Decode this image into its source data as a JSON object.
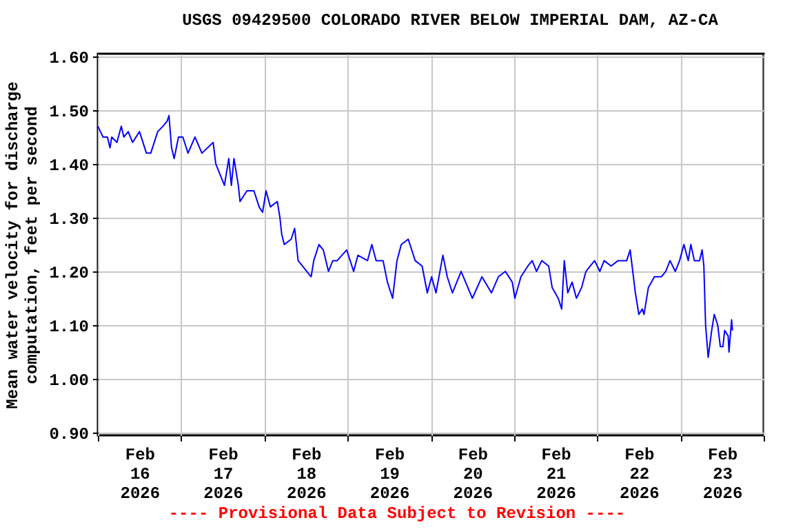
{
  "chart_data": {
    "type": "line",
    "title": "USGS 09429500 COLORADO RIVER BELOW IMPERIAL DAM, AZ-CA",
    "ylabel": "Mean water velocity for discharge computation, feet per second",
    "annotations": [
      "---- Provisional Data Subject to Revision ----"
    ],
    "xlim": [
      "2026-02-16T00:00",
      "2026-02-24T00:00"
    ],
    "xticks": [
      {
        "value": "2026-02-16T00:00",
        "label": null
      },
      {
        "value": "2026-02-16T12:00",
        "label": "Feb 16 2026"
      },
      {
        "value": "2026-02-17T00:00",
        "label": null
      },
      {
        "value": "2026-02-17T12:00",
        "label": "Feb 17 2026"
      },
      {
        "value": "2026-02-18T00:00",
        "label": null
      },
      {
        "value": "2026-02-18T12:00",
        "label": "Feb 18 2026"
      },
      {
        "value": "2026-02-19T00:00",
        "label": null
      },
      {
        "value": "2026-02-19T12:00",
        "label": "Feb 19 2026"
      },
      {
        "value": "2026-02-20T00:00",
        "label": null
      },
      {
        "value": "2026-02-20T12:00",
        "label": "Feb 20 2026"
      },
      {
        "value": "2026-02-21T00:00",
        "label": null
      },
      {
        "value": "2026-02-21T12:00",
        "label": "Feb 21 2026"
      },
      {
        "value": "2026-02-22T00:00",
        "label": null
      },
      {
        "value": "2026-02-22T12:00",
        "label": "Feb 22 2026"
      },
      {
        "value": "2026-02-23T00:00",
        "label": null
      },
      {
        "value": "2026-02-23T12:00",
        "label": "Feb 23 2026"
      },
      {
        "value": "2026-02-24T00:00",
        "label": null
      }
    ],
    "ylim": [
      0.895,
      1.605
    ],
    "yticks": [
      {
        "value": 0.9,
        "label": "0.90"
      },
      {
        "value": 1.0,
        "label": "1.00"
      },
      {
        "value": 1.1,
        "label": "1.10"
      },
      {
        "value": 1.2,
        "label": "1.20"
      },
      {
        "value": 1.3,
        "label": "1.30"
      },
      {
        "value": 1.4,
        "label": "1.40"
      },
      {
        "value": 1.5,
        "label": "1.50"
      },
      {
        "value": 1.6,
        "label": "1.60"
      }
    ],
    "grid": true,
    "marker": "none",
    "line_style": "solid",
    "x": [
      "2026-02-16T00:00",
      "2026-02-16T00:45",
      "2026-02-16T01:30",
      "2026-02-16T02:45",
      "2026-02-16T03:30",
      "2026-02-16T04:00",
      "2026-02-16T05:30",
      "2026-02-16T06:45",
      "2026-02-16T07:30",
      "2026-02-16T08:45",
      "2026-02-16T10:00",
      "2026-02-16T12:00",
      "2026-02-16T14:00",
      "2026-02-16T15:15",
      "2026-02-16T17:15",
      "2026-02-16T18:45",
      "2026-02-16T20:00",
      "2026-02-16T20:30",
      "2026-02-16T21:15",
      "2026-02-16T22:00",
      "2026-02-16T23:15",
      "2026-02-17T00:30",
      "2026-02-17T02:00",
      "2026-02-17T04:00",
      "2026-02-17T06:00",
      "2026-02-17T09:15",
      "2026-02-17T10:00",
      "2026-02-17T11:15",
      "2026-02-17T12:30",
      "2026-02-17T13:45",
      "2026-02-17T14:30",
      "2026-02-17T15:15",
      "2026-02-17T16:30",
      "2026-02-17T17:00",
      "2026-02-17T19:00",
      "2026-02-17T21:00",
      "2026-02-17T22:30",
      "2026-02-17T23:30",
      "2026-02-18T00:30",
      "2026-02-18T01:45",
      "2026-02-18T03:45",
      "2026-02-18T04:30",
      "2026-02-18T05:00",
      "2026-02-18T05:45",
      "2026-02-18T07:45",
      "2026-02-18T08:45",
      "2026-02-18T09:45",
      "2026-02-18T11:00",
      "2026-02-18T12:15",
      "2026-02-18T13:30",
      "2026-02-18T14:15",
      "2026-02-18T15:45",
      "2026-02-18T17:00",
      "2026-02-18T18:30",
      "2026-02-18T19:45",
      "2026-02-18T21:00",
      "2026-02-18T23:45",
      "2026-02-19T01:45",
      "2026-02-19T03:00",
      "2026-02-19T05:45",
      "2026-02-19T07:00",
      "2026-02-19T08:15",
      "2026-02-19T10:15",
      "2026-02-19T11:30",
      "2026-02-19T13:00",
      "2026-02-19T14:15",
      "2026-02-19T15:30",
      "2026-02-19T17:30",
      "2026-02-19T19:30",
      "2026-02-19T21:30",
      "2026-02-19T23:00",
      "2026-02-20T00:15",
      "2026-02-20T01:30",
      "2026-02-20T03:30",
      "2026-02-20T04:45",
      "2026-02-20T06:15",
      "2026-02-20T08:45",
      "2026-02-20T12:00",
      "2026-02-20T14:45",
      "2026-02-20T17:30",
      "2026-02-20T19:30",
      "2026-02-20T21:30",
      "2026-02-20T23:30",
      "2026-02-21T00:15",
      "2026-02-21T02:00",
      "2026-02-21T04:00",
      "2026-02-21T05:15",
      "2026-02-21T06:30",
      "2026-02-21T08:00",
      "2026-02-21T10:00",
      "2026-02-21T11:00",
      "2026-02-21T12:45",
      "2026-02-21T13:45",
      "2026-02-21T14:30",
      "2026-02-21T15:30",
      "2026-02-21T16:45",
      "2026-02-21T18:00",
      "2026-02-21T19:30",
      "2026-02-21T20:45",
      "2026-02-21T22:00",
      "2026-02-21T23:15",
      "2026-02-22T00:45",
      "2026-02-22T02:00",
      "2026-02-22T04:00",
      "2026-02-22T06:00",
      "2026-02-22T08:30",
      "2026-02-22T09:30",
      "2026-02-22T10:15",
      "2026-02-22T11:00",
      "2026-02-22T12:00",
      "2026-02-22T13:00",
      "2026-02-22T13:30",
      "2026-02-22T14:45",
      "2026-02-22T16:30",
      "2026-02-22T18:30",
      "2026-02-22T19:45",
      "2026-02-22T21:00",
      "2026-02-22T22:30",
      "2026-02-22T23:45",
      "2026-02-23T01:00",
      "2026-02-23T02:15",
      "2026-02-23T03:00",
      "2026-02-23T04:00",
      "2026-02-23T05:30",
      "2026-02-23T06:15",
      "2026-02-23T06:45",
      "2026-02-23T07:15",
      "2026-02-23T08:00",
      "2026-02-23T09:00",
      "2026-02-23T09:45",
      "2026-02-23T10:45",
      "2026-02-23T11:30",
      "2026-02-23T12:15",
      "2026-02-23T12:45",
      "2026-02-23T13:45",
      "2026-02-23T14:00",
      "2026-02-23T14:45",
      "2026-02-23T15:00"
    ],
    "series": [
      {
        "color": "#0000ff",
        "values": [
          1.47,
          1.46,
          1.45,
          1.45,
          1.43,
          1.45,
          1.44,
          1.47,
          1.45,
          1.46,
          1.44,
          1.46,
          1.42,
          1.42,
          1.46,
          1.47,
          1.48,
          1.49,
          1.43,
          1.41,
          1.45,
          1.45,
          1.42,
          1.45,
          1.42,
          1.44,
          1.4,
          1.38,
          1.36,
          1.41,
          1.36,
          1.41,
          1.36,
          1.33,
          1.35,
          1.35,
          1.32,
          1.31,
          1.35,
          1.32,
          1.33,
          1.3,
          1.27,
          1.25,
          1.26,
          1.28,
          1.22,
          1.21,
          1.2,
          1.19,
          1.22,
          1.25,
          1.24,
          1.2,
          1.22,
          1.22,
          1.24,
          1.2,
          1.23,
          1.22,
          1.25,
          1.22,
          1.22,
          1.18,
          1.15,
          1.22,
          1.25,
          1.26,
          1.22,
          1.21,
          1.16,
          1.19,
          1.16,
          1.23,
          1.19,
          1.16,
          1.2,
          1.15,
          1.19,
          1.16,
          1.19,
          1.2,
          1.18,
          1.15,
          1.19,
          1.21,
          1.22,
          1.2,
          1.22,
          1.21,
          1.17,
          1.15,
          1.13,
          1.22,
          1.16,
          1.18,
          1.15,
          1.17,
          1.2,
          1.21,
          1.22,
          1.2,
          1.22,
          1.21,
          1.22,
          1.22,
          1.24,
          1.2,
          1.16,
          1.12,
          1.13,
          1.12,
          1.17,
          1.19,
          1.19,
          1.2,
          1.22,
          1.2,
          1.22,
          1.25,
          1.22,
          1.25,
          1.22,
          1.22,
          1.24,
          1.21,
          1.1,
          1.04,
          1.09,
          1.12,
          1.1,
          1.06,
          1.06,
          1.09,
          1.08,
          1.05,
          1.11,
          1.09
        ]
      }
    ]
  }
}
